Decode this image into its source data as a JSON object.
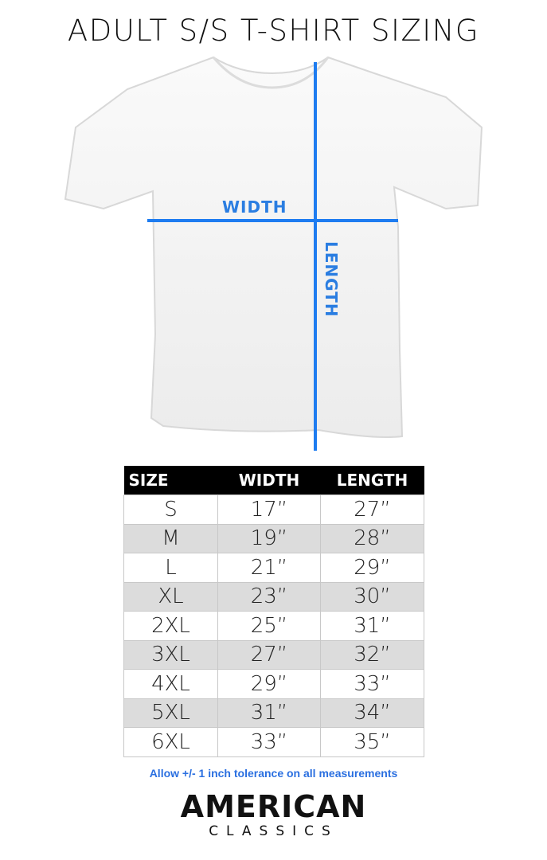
{
  "title": "ADULT S/S T-SHIRT SIZING",
  "diagram": {
    "width_label": "WIDTH",
    "length_label": "LENGTH",
    "line_color": "#1e7cf0"
  },
  "table": {
    "headers": [
      "SIZE",
      "WIDTH",
      "LENGTH"
    ],
    "rows": [
      [
        "S",
        "17”",
        "27”"
      ],
      [
        "M",
        "19”",
        "28”"
      ],
      [
        "L",
        "21”",
        "29”"
      ],
      [
        "XL",
        "23”",
        "30”"
      ],
      [
        "2XL",
        "25”",
        "31”"
      ],
      [
        "3XL",
        "27”",
        "32”"
      ],
      [
        "4XL",
        "29”",
        "33”"
      ],
      [
        "5XL",
        "31”",
        "34”"
      ],
      [
        "6XL",
        "33”",
        "35”"
      ]
    ]
  },
  "note": "Allow +/- 1 inch tolerance on all measurements",
  "logo": {
    "line1": "AMERICAN",
    "line2": "CLASSICS"
  }
}
